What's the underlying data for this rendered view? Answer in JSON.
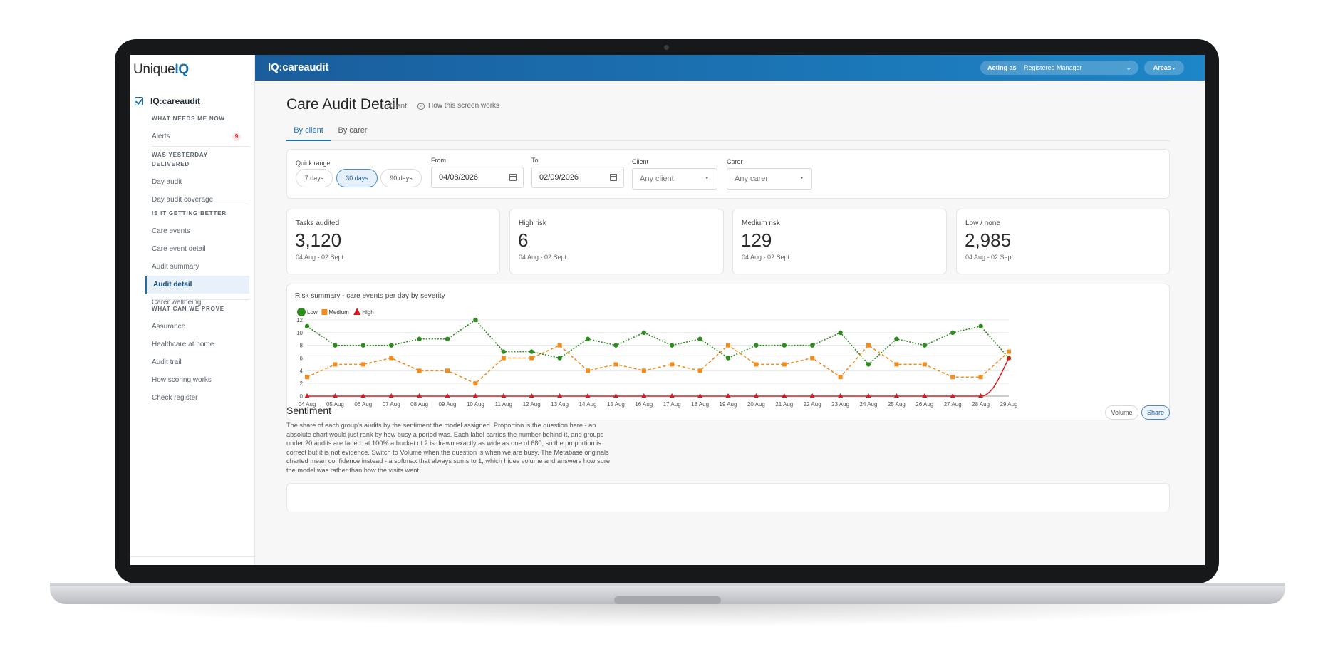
{
  "sidebar": {
    "logo_text": "Unique",
    "logo_bold": "IQ",
    "product": "IQ:careaudit",
    "groups": [
      {
        "heading": "WHAT NEEDS ME NOW",
        "items": [
          {
            "label": "Alerts",
            "badge": "9"
          }
        ]
      },
      {
        "heading": "WAS YESTERDAY DELIVERED",
        "items": [
          {
            "label": "Day audit"
          },
          {
            "label": "Day audit coverage"
          }
        ]
      },
      {
        "heading": "IS IT GETTING BETTER",
        "items": [
          {
            "label": "Care events"
          },
          {
            "label": "Care event detail"
          },
          {
            "label": "Audit summary"
          },
          {
            "label": "Audit detail"
          },
          {
            "label": "Carer wellbeing"
          }
        ]
      },
      {
        "heading": "WHAT CAN WE PROVE",
        "items": [
          {
            "label": "Assurance"
          },
          {
            "label": "Healthcare at home"
          },
          {
            "label": "Audit trail"
          },
          {
            "label": "How scoring works"
          },
          {
            "label": "Check register"
          }
        ]
      }
    ],
    "active_item": "Audit detail"
  },
  "topbar": {
    "brand": "IQ:careaudit",
    "acting_label": "Acting as",
    "acting_value": "Registered Manager",
    "areas_label": "Areas"
  },
  "page": {
    "title": "Care Audit Detail",
    "subtitle": "Client",
    "help_link": "How this screen works",
    "tabs": [
      {
        "label": "By client",
        "active": true
      },
      {
        "label": "By carer",
        "active": false
      }
    ]
  },
  "filters": {
    "quick_range_label": "Quick range",
    "quick_ranges": [
      {
        "label": "7 days"
      },
      {
        "label": "30 days",
        "active": true
      },
      {
        "label": "90 days"
      }
    ],
    "from_label": "From",
    "from_value": "04/08/2026",
    "to_label": "To",
    "to_value": "02/09/2026",
    "client_label": "Client",
    "client_value": "Any client",
    "carer_label": "Carer",
    "carer_value": "Any carer"
  },
  "kpis": [
    {
      "label": "Tasks audited",
      "value": "3,120",
      "range": "04 Aug - 02 Sept"
    },
    {
      "label": "High risk",
      "value": "6",
      "range": "04 Aug - 02 Sept"
    },
    {
      "label": "Medium risk",
      "value": "129",
      "range": "04 Aug - 02 Sept"
    },
    {
      "label": "Low / none",
      "value": "2,985",
      "range": "04 Aug - 02 Sept"
    }
  ],
  "chart_data": {
    "type": "line",
    "title": "Risk summary - care events per day by severity",
    "xlabel": "",
    "ylabel": "",
    "ylim": [
      0,
      12
    ],
    "yticks": [
      0,
      2,
      4,
      6,
      8,
      10,
      12
    ],
    "grid": true,
    "legend_position": "top-left",
    "categories": [
      "04 Aug",
      "05 Aug",
      "06 Aug",
      "07 Aug",
      "08 Aug",
      "09 Aug",
      "10 Aug",
      "11 Aug",
      "12 Aug",
      "13 Aug",
      "14 Aug",
      "15 Aug",
      "16 Aug",
      "17 Aug",
      "18 Aug",
      "19 Aug",
      "20 Aug",
      "21 Aug",
      "22 Aug",
      "23 Aug",
      "24 Aug",
      "25 Aug",
      "26 Aug",
      "27 Aug",
      "28 Aug",
      "29 Aug"
    ],
    "series": [
      {
        "name": "Low",
        "color": "#2e8b1e",
        "marker": "circle",
        "values": [
          11,
          8,
          8,
          8,
          9,
          9,
          12,
          7,
          7,
          6,
          9,
          8,
          10,
          8,
          9,
          6,
          8,
          8,
          8,
          10,
          5,
          9,
          8,
          10,
          11,
          6
        ]
      },
      {
        "name": "Medium",
        "color": "#f28c1e",
        "marker": "square",
        "values": [
          3,
          5,
          5,
          6,
          4,
          4,
          2,
          6,
          6,
          8,
          4,
          5,
          4,
          5,
          4,
          8,
          5,
          5,
          6,
          3,
          8,
          5,
          5,
          3,
          3,
          7
        ]
      },
      {
        "name": "High",
        "color": "#d61d1d",
        "marker": "triangle",
        "values": [
          0,
          0,
          0,
          0,
          0,
          0,
          0,
          0,
          0,
          0,
          0,
          0,
          0,
          0,
          0,
          0,
          0,
          0,
          0,
          0,
          0,
          0,
          0,
          0,
          0,
          6
        ]
      }
    ]
  },
  "sentiment": {
    "title": "Sentiment",
    "toggle": [
      {
        "label": "Volume"
      },
      {
        "label": "Share",
        "active": true
      }
    ],
    "description": "The share of each group's audits by the sentiment the model assigned. Proportion is the question here - an absolute chart would just rank by how busy a period was. Each label carries the number behind it, and groups under 20 audits are faded: at 100% a bucket of 2 is drawn exactly as wide as one of 680, so the proportion is correct but it is not evidence. Switch to Volume when the question is when we are busy. The Metabase originals charted mean confidence instead - a softmax that always sums to 1, which hides volume and answers how sure the model was rather than how the visits went."
  }
}
